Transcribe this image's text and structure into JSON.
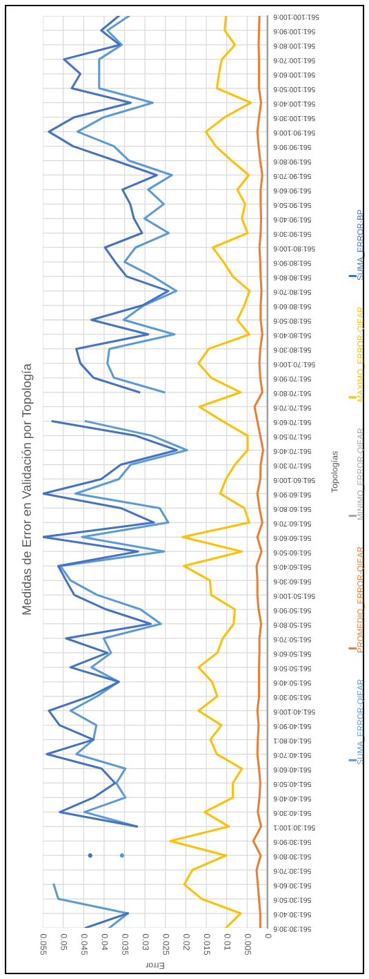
{
  "chart_data": {
    "type": "line",
    "orientation": "horizontal",
    "title": "Medidas de Error en Validación por Topología",
    "xlabel": "Error",
    "ylabel": "Topologías",
    "categories": [
      "561:100:100:6",
      "561:100:90:6",
      "561:100:80:6",
      "561:100:70:6",
      "561:100:60:6",
      "561:100:50:6",
      "561:100:40:6",
      "561:100:30:6",
      "561:90:100:6",
      "561:90:90:6",
      "561:90:80:6",
      "561:90:70:6",
      "561:90:60:6",
      "561:90:50:6",
      "561:90:40:6",
      "561:90:30:6",
      "561:80:100:6",
      "561:80:90:6",
      "561:80:80:6",
      "561:80:70:6",
      "561:80:60:6",
      "561:80:50:6",
      "561:80:40:6",
      "561:80:30:6",
      "561:70:100:6",
      "561:70:90:6",
      "561:70:80:6",
      "561:70:70:6",
      "561:70:60:6",
      "561:70:50:6",
      "561:70:40:6",
      "561:70:30:6",
      "561:60:100:6",
      "561:60:90:6",
      "561:60:80:6",
      "561:60:70:6",
      "561:60:60:6",
      "561:60:50:6",
      "561:60:40:6",
      "561:60:30:6",
      "561:50:100:6",
      "561:50:90:6",
      "561:50:80:6",
      "561:50:70:6",
      "561:50:60:6",
      "561:50:50:6",
      "561:50:40:6",
      "561:50:30:6",
      "561:40:100:6",
      "561:40:90:6",
      "561:40:80:1",
      "561:40:70:6",
      "561:40:60:6",
      "561:40:50:6",
      "561:40:40:6",
      "561:40:30:6",
      "561:30:100:1",
      "561:30:90:6",
      "561:30:80:6",
      "561:30:70:6",
      "561:30:60:6",
      "561:30:50:6",
      "561:30:40:6",
      "561:30:30:6"
    ],
    "series": [
      {
        "name": "SUMA_ERROR-QIEAR",
        "color": "#5b9bd5",
        "values": [
          0.0339,
          0.0392,
          0.0357,
          0.0412,
          0.0412,
          0.0412,
          0.0281,
          0.0401,
          0.0465,
          0.0376,
          0.0339,
          0.0234,
          0.0292,
          0.0254,
          0.0301,
          0.0242,
          0.0323,
          0.035,
          0.0281,
          0.0223,
          0.0303,
          0.0352,
          0.0228,
          0.0387,
          0.0392,
          0.0376,
          0.0253,
          null,
          0.0445,
          0.0283,
          0.0197,
          0.0335,
          0.0364,
          0.047,
          0.0264,
          0.0243,
          0.0454,
          0.0253,
          0.0507,
          0.0482,
          0.0417,
          0.0311,
          0.0261,
          0.0401,
          0.0383,
          0.0431,
          0.0364,
          0.0417,
          0.0482,
          0.0419,
          0.0426,
          0.0468,
          0.0348,
          0.037,
          0.0348,
          0.0448,
          0.032,
          null,
          0.0356,
          null,
          0.0523,
          0.0512,
          0.0342,
          0.0387
        ]
      },
      {
        "name": "PROMEDIO_ERROR-QIEAR",
        "color": "#ed7d31",
        "values": [
          0.002,
          0.0021,
          0.0022,
          0.0021,
          0.0021,
          0.0021,
          0.0016,
          0.0021,
          0.0025,
          0.0022,
          0.0018,
          0.0013,
          0.0017,
          0.0017,
          0.0016,
          0.0017,
          0.002,
          0.0018,
          0.0017,
          0.0015,
          0.0017,
          0.0017,
          0.0013,
          0.0018,
          0.002,
          0.0018,
          0.0013,
          0.0032,
          0.0025,
          0.0018,
          0.0011,
          0.0017,
          0.0018,
          0.0025,
          0.002,
          0.0013,
          0.0025,
          0.0015,
          0.0027,
          0.0025,
          0.0025,
          0.0022,
          0.0016,
          0.002,
          0.002,
          0.0021,
          0.0021,
          0.0021,
          0.0025,
          0.0022,
          0.0024,
          0.0025,
          0.0021,
          0.0018,
          0.002,
          0.0024,
          0.0016,
          0.0035,
          0.0017,
          0.0027,
          0.0024,
          0.0021,
          0.0018,
          0.0018
        ]
      },
      {
        "name": "MINIMO_ERROR-QIEAR",
        "color": "#a5a5a5",
        "values": [
          0,
          0,
          0,
          0,
          0,
          0,
          0,
          0,
          0,
          0,
          0,
          0,
          0,
          0,
          0,
          0,
          0,
          0,
          0,
          0,
          0,
          0,
          0,
          0,
          0,
          0,
          0,
          0,
          0,
          0,
          0,
          0,
          0,
          0,
          0,
          0,
          0,
          0,
          0,
          0,
          0,
          0,
          0,
          0,
          0,
          0,
          0,
          0,
          0,
          0,
          0,
          0,
          0,
          0,
          0,
          0,
          0,
          0,
          0,
          0,
          0,
          0,
          0,
          0
        ]
      },
      {
        "name": "MAXIMO_ERROR-QIEAR",
        "color": "#ffc000",
        "values": [
          0.0102,
          0.0105,
          0.008,
          0.0112,
          0.0119,
          0.0124,
          0.0041,
          0.0105,
          0.0151,
          0.0127,
          0.0088,
          0.0046,
          0.0074,
          0.0055,
          0.0063,
          0.0049,
          0.0134,
          0.0108,
          0.0085,
          0.0044,
          0.0057,
          0.0074,
          0.0045,
          0.0144,
          0.0169,
          0.0138,
          0.0066,
          0.0167,
          0.011,
          0.0049,
          0.0049,
          0.008,
          0.0102,
          0.0116,
          0.0057,
          0.0045,
          0.0208,
          0.0063,
          0.0205,
          0.0141,
          0.0138,
          0.008,
          0.0083,
          0.011,
          0.0123,
          0.0169,
          0.0136,
          0.0123,
          0.0169,
          0.0113,
          0.014,
          0.0124,
          0.0063,
          0.0085,
          0.0085,
          0.0154,
          0.0095,
          0.0238,
          0.0102,
          0.0184,
          0.0204,
          0.0161,
          0.0066,
          0.0102
        ]
      },
      {
        "name": "SUMA_ERROR-BP",
        "color": "#4472c4",
        "values": [
          0.0364,
          0.0407,
          0.0362,
          0.0498,
          0.0458,
          0.0479,
          0.0335,
          0.0473,
          0.0535,
          0.0476,
          0.0373,
          0.0271,
          0.0355,
          0.0336,
          0.0327,
          0.0307,
          0.0398,
          0.0373,
          0.0345,
          0.0243,
          0.0306,
          0.0431,
          0.0292,
          0.0468,
          0.0458,
          0.0426,
          0.0314,
          null,
          0.0526,
          0.0323,
          0.0222,
          0.0359,
          0.0407,
          0.0549,
          0.0359,
          0.0278,
          0.055,
          0.0317,
          0.0512,
          0.0493,
          0.0473,
          0.0395,
          0.0286,
          0.0493,
          0.0392,
          0.0482,
          0.0364,
          0.0434,
          0.0535,
          0.0509,
          0.0426,
          0.054,
          0.0406,
          0.0373,
          0.0426,
          0.0508,
          0.032,
          null,
          0.0434,
          null,
          null,
          null,
          0.0342,
          0.0445
        ]
      }
    ],
    "xlim": [
      0.055,
      0
    ],
    "xticks": [
      0.055,
      0.05,
      0.045,
      0.04,
      0.035,
      0.03,
      0.025,
      0.02,
      0.015,
      0.01,
      0.005,
      0
    ],
    "grid": true,
    "legend": "right",
    "marker": "none",
    "line_style": "solid"
  }
}
